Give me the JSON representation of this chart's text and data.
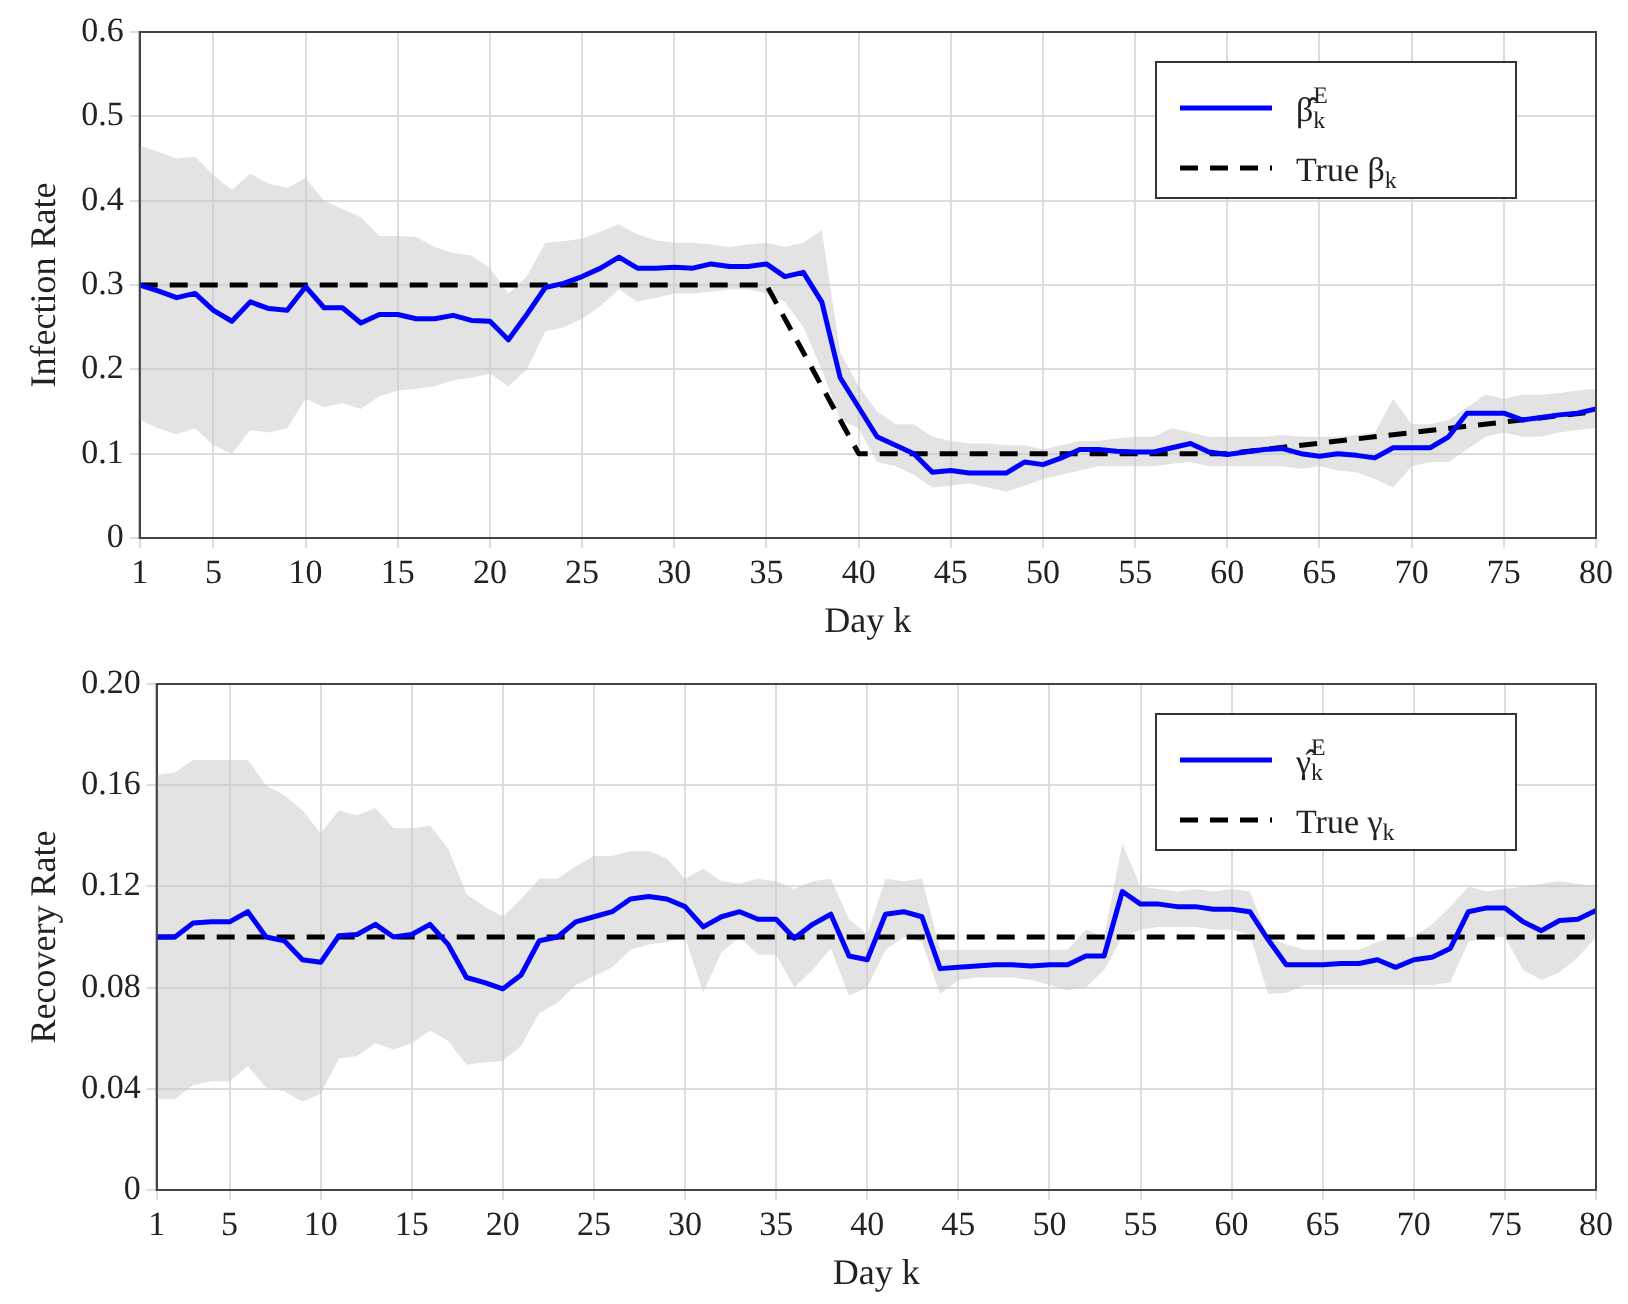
{
  "chart_data": [
    {
      "type": "line",
      "ylabel": "Infection Rate",
      "xlabel": "Day k",
      "grid": true,
      "legend": "top right",
      "xlim": [
        1,
        80
      ],
      "xticks": [
        1,
        5,
        10,
        15,
        20,
        25,
        30,
        35,
        40,
        45,
        50,
        55,
        60,
        65,
        70,
        75,
        80
      ],
      "ylim": [
        0,
        0.6
      ],
      "yticks": [
        0,
        0.1,
        0.2,
        0.3,
        0.4,
        0.5,
        0.6
      ],
      "x": [
        1,
        2,
        3,
        4,
        5,
        6,
        7,
        8,
        9,
        10,
        11,
        12,
        13,
        14,
        15,
        16,
        17,
        18,
        19,
        20,
        21,
        22,
        23,
        24,
        25,
        26,
        27,
        28,
        29,
        30,
        31,
        32,
        33,
        34,
        35,
        36,
        37,
        38,
        39,
        40,
        41,
        42,
        43,
        44,
        45,
        46,
        47,
        48,
        49,
        50,
        51,
        52,
        53,
        54,
        55,
        56,
        57,
        58,
        59,
        60,
        61,
        62,
        63,
        64,
        65,
        66,
        67,
        68,
        69,
        70,
        71,
        72,
        73,
        74,
        75,
        76,
        77,
        78,
        79,
        80
      ],
      "series": [
        {
          "name": "β̂$_{k}$$^{E}$",
          "color": "#0000ff",
          "line_style": "solid",
          "values": [
            0.3,
            0.293,
            0.285,
            0.29,
            0.27,
            0.257,
            0.28,
            0.272,
            0.27,
            0.298,
            0.273,
            0.273,
            0.255,
            0.265,
            0.265,
            0.26,
            0.26,
            0.264,
            0.258,
            0.257,
            0.235,
            0.265,
            0.297,
            0.302,
            0.31,
            0.32,
            0.333,
            0.32,
            0.32,
            0.321,
            0.32,
            0.325,
            0.322,
            0.322,
            0.325,
            0.31,
            0.315,
            0.28,
            0.19,
            0.155,
            0.12,
            0.11,
            0.1,
            0.078,
            0.08,
            0.077,
            0.077,
            0.077,
            0.09,
            0.087,
            0.095,
            0.105,
            0.105,
            0.103,
            0.102,
            0.102,
            0.107,
            0.112,
            0.102,
            0.099,
            0.102,
            0.105,
            0.106,
            0.1,
            0.097,
            0.1,
            0.098,
            0.095,
            0.107,
            0.107,
            0.107,
            0.12,
            0.148,
            0.148,
            0.148,
            0.14,
            0.143,
            0.146,
            0.148,
            0.153
          ],
          "lower": [
            0.14,
            0.13,
            0.123,
            0.13,
            0.11,
            0.1,
            0.128,
            0.125,
            0.13,
            0.165,
            0.155,
            0.16,
            0.153,
            0.168,
            0.175,
            0.177,
            0.18,
            0.187,
            0.19,
            0.195,
            0.18,
            0.2,
            0.245,
            0.25,
            0.26,
            0.275,
            0.295,
            0.28,
            0.285,
            0.29,
            0.29,
            0.292,
            0.295,
            0.295,
            0.29,
            0.28,
            0.25,
            0.2,
            0.14,
            0.13,
            0.09,
            0.085,
            0.075,
            0.06,
            0.062,
            0.065,
            0.06,
            0.055,
            0.062,
            0.07,
            0.075,
            0.08,
            0.085,
            0.085,
            0.085,
            0.085,
            0.088,
            0.09,
            0.085,
            0.085,
            0.085,
            0.085,
            0.085,
            0.082,
            0.085,
            0.08,
            0.078,
            0.07,
            0.06,
            0.085,
            0.09,
            0.09,
            0.105,
            0.12,
            0.125,
            0.12,
            0.12,
            0.125,
            0.128,
            0.13
          ],
          "upper": [
            0.465,
            0.458,
            0.45,
            0.452,
            0.43,
            0.413,
            0.432,
            0.42,
            0.415,
            0.427,
            0.4,
            0.39,
            0.38,
            0.358,
            0.358,
            0.357,
            0.345,
            0.338,
            0.335,
            0.32,
            0.29,
            0.31,
            0.35,
            0.352,
            0.355,
            0.363,
            0.372,
            0.36,
            0.353,
            0.35,
            0.35,
            0.348,
            0.345,
            0.348,
            0.35,
            0.345,
            0.35,
            0.365,
            0.22,
            0.18,
            0.15,
            0.135,
            0.135,
            0.12,
            0.115,
            0.112,
            0.112,
            0.11,
            0.11,
            0.105,
            0.11,
            0.115,
            0.115,
            0.118,
            0.12,
            0.12,
            0.13,
            0.125,
            0.12,
            0.12,
            0.12,
            0.12,
            0.122,
            0.12,
            0.12,
            0.12,
            0.122,
            0.125,
            0.165,
            0.135,
            0.135,
            0.14,
            0.155,
            0.17,
            0.165,
            0.17,
            0.17,
            0.172,
            0.175,
            0.177
          ]
        },
        {
          "name": "True β$_{k}$",
          "color": "#000000",
          "line_style": "dashed",
          "x": [
            1,
            35,
            40,
            60,
            80
          ],
          "values": [
            0.3,
            0.3,
            0.1,
            0.1,
            0.15
          ]
        }
      ]
    },
    {
      "type": "line",
      "ylabel": "Recovery Rate",
      "xlabel": "Day k",
      "grid": true,
      "legend": "top right",
      "xlim": [
        1,
        80
      ],
      "xticks": [
        1,
        5,
        10,
        15,
        20,
        25,
        30,
        35,
        40,
        45,
        50,
        55,
        60,
        65,
        70,
        75,
        80
      ],
      "ylim": [
        0,
        0.2
      ],
      "yticks": [
        0,
        {
          "value": 0.04,
          "label": "0.04"
        },
        {
          "value": 0.08,
          "label": "0.08"
        },
        {
          "value": 0.12,
          "label": "0.12"
        },
        {
          "value": 0.16,
          "label": "0.16"
        },
        {
          "value": 0.2,
          "label": "0.20"
        }
      ],
      "x": [
        1,
        2,
        3,
        4,
        5,
        6,
        7,
        8,
        9,
        10,
        11,
        12,
        13,
        14,
        15,
        16,
        17,
        18,
        19,
        20,
        21,
        22,
        23,
        24,
        25,
        26,
        27,
        28,
        29,
        30,
        31,
        32,
        33,
        34,
        35,
        36,
        37,
        38,
        39,
        40,
        41,
        42,
        43,
        44,
        45,
        46,
        47,
        48,
        49,
        50,
        51,
        52,
        53,
        54,
        55,
        56,
        57,
        58,
        59,
        60,
        61,
        62,
        63,
        64,
        65,
        66,
        67,
        68,
        69,
        70,
        71,
        72,
        73,
        74,
        75,
        76,
        77,
        78,
        79,
        80
      ],
      "series": [
        {
          "name": "γ̂$_{k}$$^{E}$",
          "color": "#0000ff",
          "line_style": "solid",
          "values": [
            0.1,
            0.1,
            0.1055,
            0.106,
            0.106,
            0.11,
            0.1,
            0.0985,
            0.091,
            0.09,
            0.1005,
            0.101,
            0.105,
            0.1,
            0.101,
            0.105,
            0.097,
            0.084,
            0.082,
            0.0795,
            0.085,
            0.0985,
            0.1,
            0.106,
            0.108,
            0.11,
            0.115,
            0.116,
            0.115,
            0.112,
            0.104,
            0.108,
            0.11,
            0.107,
            0.107,
            0.0995,
            0.105,
            0.109,
            0.0925,
            0.091,
            0.109,
            0.11,
            0.108,
            0.0875,
            0.088,
            0.0885,
            0.089,
            0.089,
            0.0885,
            0.089,
            0.089,
            0.0925,
            0.0925,
            0.118,
            0.113,
            0.113,
            0.112,
            0.112,
            0.111,
            0.111,
            0.11,
            0.099,
            0.089,
            0.089,
            0.089,
            0.0895,
            0.0895,
            0.091,
            0.088,
            0.091,
            0.092,
            0.0955,
            0.11,
            0.1115,
            0.1115,
            0.106,
            0.1025,
            0.1065,
            0.107,
            0.1105
          ],
          "lower": [
            0.036,
            0.036,
            0.0415,
            0.043,
            0.043,
            0.049,
            0.0405,
            0.039,
            0.035,
            0.038,
            0.052,
            0.053,
            0.058,
            0.0555,
            0.058,
            0.063,
            0.059,
            0.0495,
            0.0505,
            0.051,
            0.057,
            0.07,
            0.074,
            0.081,
            0.0845,
            0.088,
            0.095,
            0.097,
            0.098,
            0.1,
            0.078,
            0.094,
            0.1,
            0.093,
            0.093,
            0.08,
            0.087,
            0.0955,
            0.077,
            0.08,
            0.095,
            0.1,
            0.098,
            0.0775,
            0.083,
            0.084,
            0.084,
            0.084,
            0.083,
            0.081,
            0.079,
            0.08,
            0.087,
            0.1,
            0.103,
            0.104,
            0.104,
            0.104,
            0.103,
            0.103,
            0.101,
            0.0775,
            0.078,
            0.081,
            0.081,
            0.081,
            0.081,
            0.081,
            0.081,
            0.081,
            0.081,
            0.082,
            0.098,
            0.1,
            0.1,
            0.087,
            0.083,
            0.086,
            0.092,
            0.1
          ],
          "upper": [
            0.164,
            0.165,
            0.17,
            0.17,
            0.17,
            0.17,
            0.16,
            0.156,
            0.15,
            0.141,
            0.15,
            0.148,
            0.151,
            0.143,
            0.143,
            0.144,
            0.135,
            0.117,
            0.112,
            0.108,
            0.115,
            0.123,
            0.123,
            0.128,
            0.132,
            0.132,
            0.134,
            0.134,
            0.131,
            0.123,
            0.127,
            0.122,
            0.121,
            0.123,
            0.122,
            0.119,
            0.122,
            0.123,
            0.107,
            0.101,
            0.123,
            0.122,
            0.123,
            0.095,
            0.095,
            0.095,
            0.095,
            0.095,
            0.095,
            0.095,
            0.095,
            0.103,
            0.1,
            0.137,
            0.12,
            0.119,
            0.118,
            0.119,
            0.118,
            0.119,
            0.118,
            0.1,
            0.097,
            0.095,
            0.095,
            0.095,
            0.095,
            0.098,
            0.1,
            0.1,
            0.105,
            0.112,
            0.12,
            0.118,
            0.119,
            0.12,
            0.121,
            0.122,
            0.121,
            0.12
          ]
        },
        {
          "name": "True γ$_{k}$",
          "color": "#000000",
          "line_style": "dashed",
          "x": [
            1,
            80
          ],
          "values": [
            0.1,
            0.1
          ]
        }
      ]
    }
  ]
}
